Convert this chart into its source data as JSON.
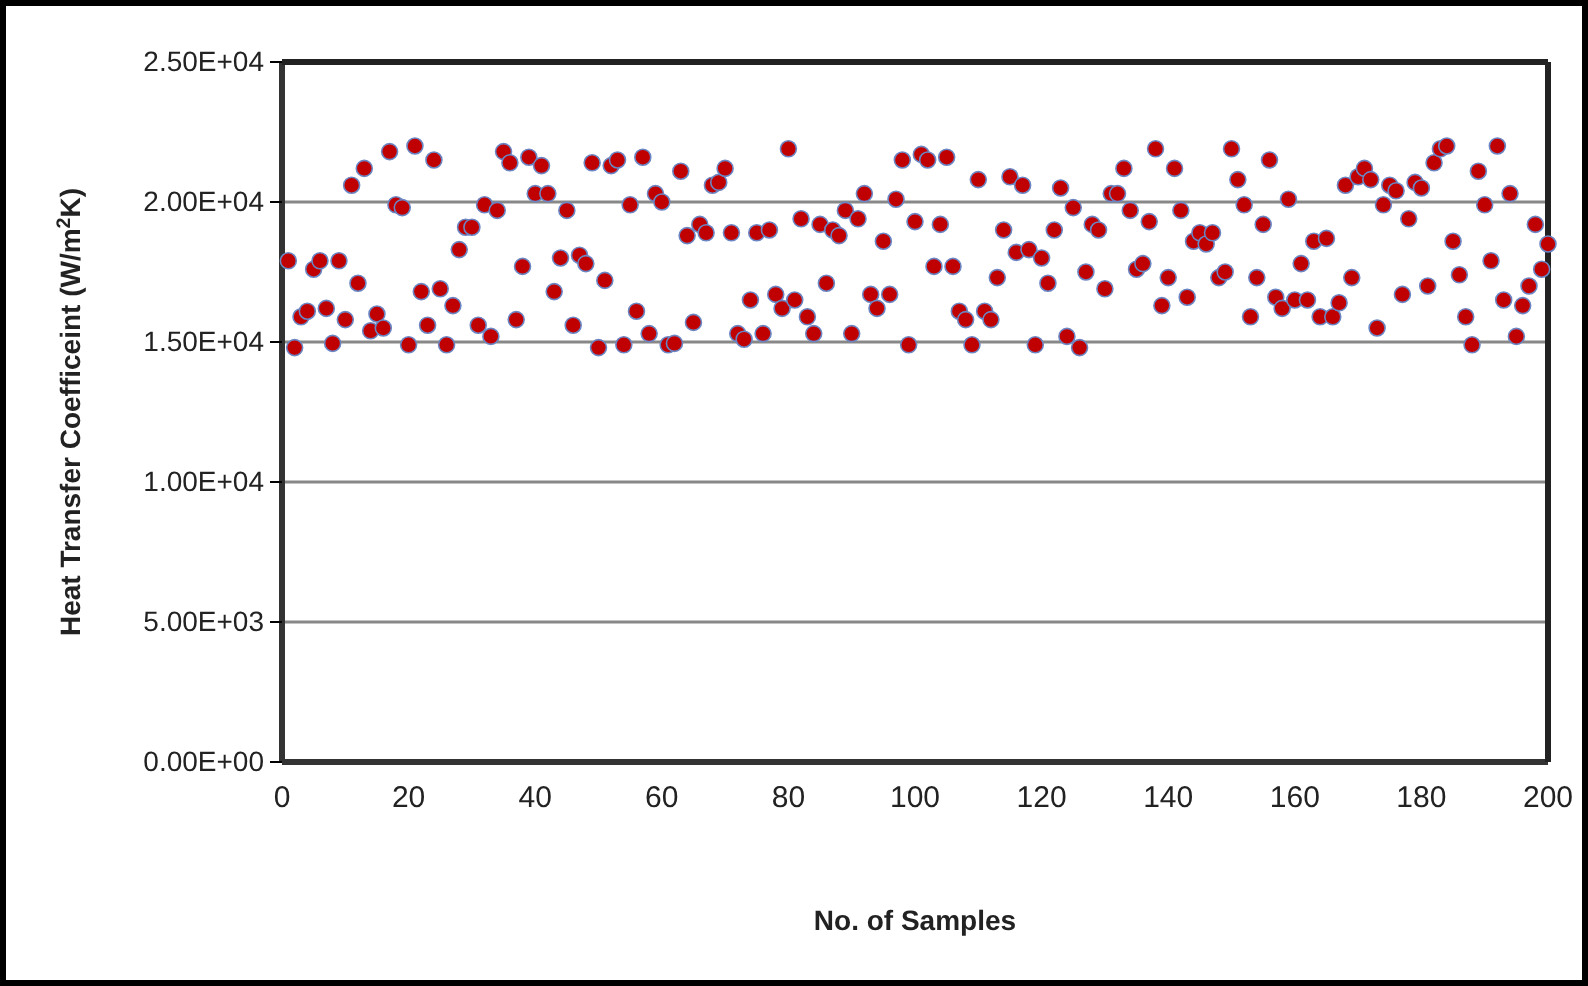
{
  "chart_data": {
    "type": "scatter",
    "xlabel": "No. of Samples",
    "ylabel": "Heat Transfer Coefficeint (W/m$^{2}$K)",
    "xlim": [
      0,
      200
    ],
    "xticks": [
      0,
      20,
      40,
      60,
      80,
      100,
      120,
      140,
      160,
      180,
      200
    ],
    "ylim": [
      0,
      25000
    ],
    "yticks": [
      {
        "value": 0,
        "label": "0.00E+00"
      },
      {
        "value": 5000,
        "label": "5.00E+03"
      },
      {
        "value": 10000,
        "label": "1.00E+04"
      },
      {
        "value": 15000,
        "label": "1.50E+04"
      },
      {
        "value": 20000,
        "label": "2.00E+04"
      },
      {
        "value": 25000,
        "label": "2.50E+04"
      }
    ],
    "grid": "y",
    "marker": "circle",
    "series": [
      {
        "color": "#c00000",
        "x": [
          1,
          2,
          3,
          4,
          5,
          6,
          7,
          8,
          9,
          10,
          11,
          12,
          13,
          14,
          15,
          16,
          17,
          18,
          19,
          20,
          21,
          22,
          23,
          24,
          25,
          26,
          27,
          28,
          29,
          30,
          31,
          32,
          33,
          34,
          35,
          36,
          37,
          38,
          39,
          40,
          41,
          42,
          43,
          44,
          45,
          46,
          47,
          48,
          49,
          50,
          51,
          52,
          53,
          54,
          55,
          56,
          57,
          58,
          59,
          60,
          61,
          62,
          63,
          64,
          65,
          66,
          67,
          68,
          69,
          70,
          71,
          72,
          73,
          74,
          75,
          76,
          77,
          78,
          79,
          80,
          81,
          82,
          83,
          84,
          85,
          86,
          87,
          88,
          89,
          90,
          91,
          92,
          93,
          94,
          95,
          96,
          97,
          98,
          99,
          100,
          101,
          102,
          103,
          104,
          105,
          106,
          107,
          108,
          109,
          110,
          111,
          112,
          113,
          114,
          115,
          116,
          117,
          118,
          119,
          120,
          121,
          122,
          123,
          124,
          125,
          126,
          127,
          128,
          129,
          130,
          131,
          132,
          133,
          134,
          135,
          136,
          137,
          138,
          139,
          140,
          141,
          142,
          143,
          144,
          145,
          146,
          147,
          148,
          149,
          150,
          151,
          152,
          153,
          154,
          155,
          156,
          157,
          158,
          159,
          160,
          161,
          162,
          163,
          164,
          165,
          166,
          167,
          168,
          169,
          170,
          171,
          172,
          173,
          174,
          175,
          176,
          177,
          178,
          179,
          180,
          181,
          182,
          183,
          184,
          185,
          186,
          187,
          188,
          189,
          190,
          191,
          192,
          193,
          194,
          195,
          196,
          197,
          198,
          199,
          200
        ],
        "values": [
          17900,
          14800,
          15900,
          16100,
          17600,
          17900,
          16200,
          14950,
          17900,
          15800,
          20600,
          17100,
          21200,
          15400,
          16000,
          15500,
          21800,
          19900,
          19800,
          14900,
          22000,
          16800,
          15600,
          21500,
          16900,
          14900,
          16300,
          18300,
          19100,
          19100,
          15600,
          19900,
          15200,
          19700,
          21800,
          21400,
          15800,
          17700,
          21600,
          20300,
          21300,
          20300,
          16800,
          18000,
          19700,
          15600,
          18100,
          17800,
          21400,
          14800,
          17200,
          21300,
          21500,
          14900,
          19900,
          16100,
          21600,
          15300,
          20300,
          20000,
          14900,
          14950,
          21100,
          18800,
          15700,
          19200,
          18900,
          20600,
          20700,
          21200,
          18900,
          15300,
          15100,
          16500,
          18900,
          15300,
          19000,
          16700,
          16200,
          21900,
          16500,
          19400,
          15900,
          15300,
          19200,
          17100,
          19000,
          18800,
          19700,
          15300,
          19400,
          20300,
          16700,
          16200,
          18600,
          16700,
          20100,
          21500,
          14900,
          19300,
          21700,
          21500,
          17700,
          19200,
          21600,
          17700,
          16100,
          15800,
          14900,
          20800,
          16100,
          15800,
          17300,
          19000,
          20900,
          18200,
          20600,
          18300,
          14900,
          18000,
          17100,
          19000,
          20500,
          15200,
          19800,
          14800,
          17500,
          19200,
          19000,
          16900,
          20300,
          20300,
          21200,
          19700,
          17600,
          17800,
          19300,
          21900,
          16300,
          17300,
          21200,
          19700,
          16600,
          18600,
          18900,
          18500,
          18900,
          17300,
          17500,
          21900,
          20800,
          19900,
          15900,
          17300,
          19200,
          21500,
          16600,
          16200,
          20100,
          16500,
          17800,
          16500,
          18600,
          15900,
          18700,
          15900,
          16400,
          20600,
          17300,
          20900,
          21200,
          20800,
          15500,
          19900,
          20600,
          20400,
          16700,
          19400,
          20700,
          20500,
          17000,
          21400,
          21900,
          22000,
          18600,
          17400,
          15900,
          14900,
          21100,
          19900,
          17900,
          22000,
          16500,
          20300,
          15200,
          16300,
          17000,
          19200,
          17600,
          18500
        ]
      }
    ]
  }
}
